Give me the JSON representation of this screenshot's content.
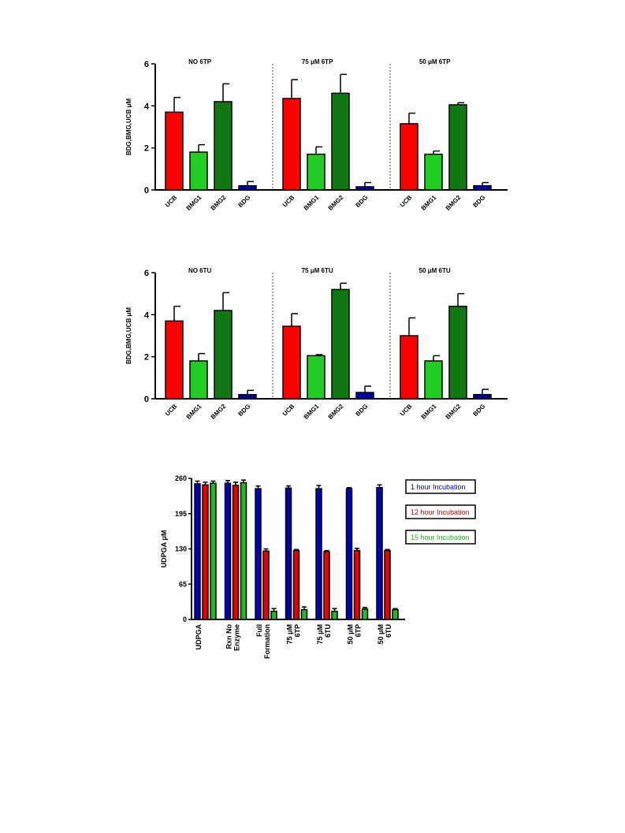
{
  "colors": {
    "UCB": "#ff0000",
    "BMG1": "#22cc22",
    "BMG2": "#117711",
    "BDG": "#0000aa",
    "blue": "#0000b4",
    "red": "#e60000",
    "green": "#22bb22"
  },
  "chart_data": [
    {
      "type": "bar",
      "ylabel": "BDG,BMG,UCB μM",
      "ylim": [
        0,
        6
      ],
      "yticks": [
        0,
        2,
        4,
        6
      ],
      "categories": [
        "UCB",
        "BMG1",
        "BMG2",
        "BDG"
      ],
      "panels": [
        {
          "title": "NO 6TP",
          "values": [
            3.7,
            1.8,
            4.2,
            0.2
          ],
          "errors": [
            0.7,
            0.35,
            0.85,
            0.2
          ]
        },
        {
          "title": "75 μM 6TP",
          "values": [
            4.35,
            1.7,
            4.6,
            0.15
          ],
          "errors": [
            0.9,
            0.35,
            0.9,
            0.2
          ]
        },
        {
          "title": "50 μM 6TP",
          "values": [
            3.15,
            1.7,
            4.05,
            0.2
          ],
          "errors": [
            0.5,
            0.15,
            0.1,
            0.15
          ]
        }
      ]
    },
    {
      "type": "bar",
      "ylabel": "BDG,BMG,UCB μM",
      "ylim": [
        0,
        6
      ],
      "yticks": [
        0,
        2,
        4,
        6
      ],
      "categories": [
        "UCB",
        "BMG1",
        "BMG2",
        "BDG"
      ],
      "panels": [
        {
          "title": "NO 6TU",
          "values": [
            3.7,
            1.8,
            4.2,
            0.2
          ],
          "errors": [
            0.7,
            0.35,
            0.85,
            0.2
          ]
        },
        {
          "title": "75 μM 6TU",
          "values": [
            3.45,
            2.05,
            5.2,
            0.3
          ],
          "errors": [
            0.6,
            0.05,
            0.3,
            0.3
          ]
        },
        {
          "title": "50 μM 6TU",
          "values": [
            3.0,
            1.8,
            4.4,
            0.2
          ],
          "errors": [
            0.85,
            0.25,
            0.6,
            0.25
          ]
        }
      ]
    },
    {
      "type": "bar",
      "ylabel": "UDPGA μM",
      "ylim": [
        0,
        260
      ],
      "yticks": [
        0,
        65,
        130,
        195,
        260
      ],
      "categories": [
        [
          "UDPGA"
        ],
        [
          "Rxn No",
          "Enzyme"
        ],
        [
          "Full",
          "Formation"
        ],
        [
          "75 μM",
          "6TP"
        ],
        [
          "75 μM",
          "6TU"
        ],
        [
          "50 μM",
          "6TP"
        ],
        [
          "50 μM",
          "6TU"
        ]
      ],
      "series": [
        {
          "name": "1 hour Incubation",
          "color_key": "blue",
          "values": [
            250,
            251,
            241,
            242,
            241,
            241,
            243
          ],
          "errors": [
            5,
            5,
            5,
            4,
            6,
            2,
            5
          ]
        },
        {
          "name": "12 hour Incubation",
          "color_key": "red",
          "values": [
            248,
            247,
            126,
            127,
            125,
            127,
            127
          ],
          "errors": [
            5,
            6,
            4,
            2,
            2,
            4,
            2
          ]
        },
        {
          "name": "15 hour Incubation",
          "color_key": "green",
          "values": [
            251,
            252,
            15,
            18,
            15,
            19,
            18
          ],
          "errors": [
            4,
            5,
            5,
            5,
            5,
            3,
            2
          ]
        }
      ],
      "legend_position": "right"
    }
  ]
}
